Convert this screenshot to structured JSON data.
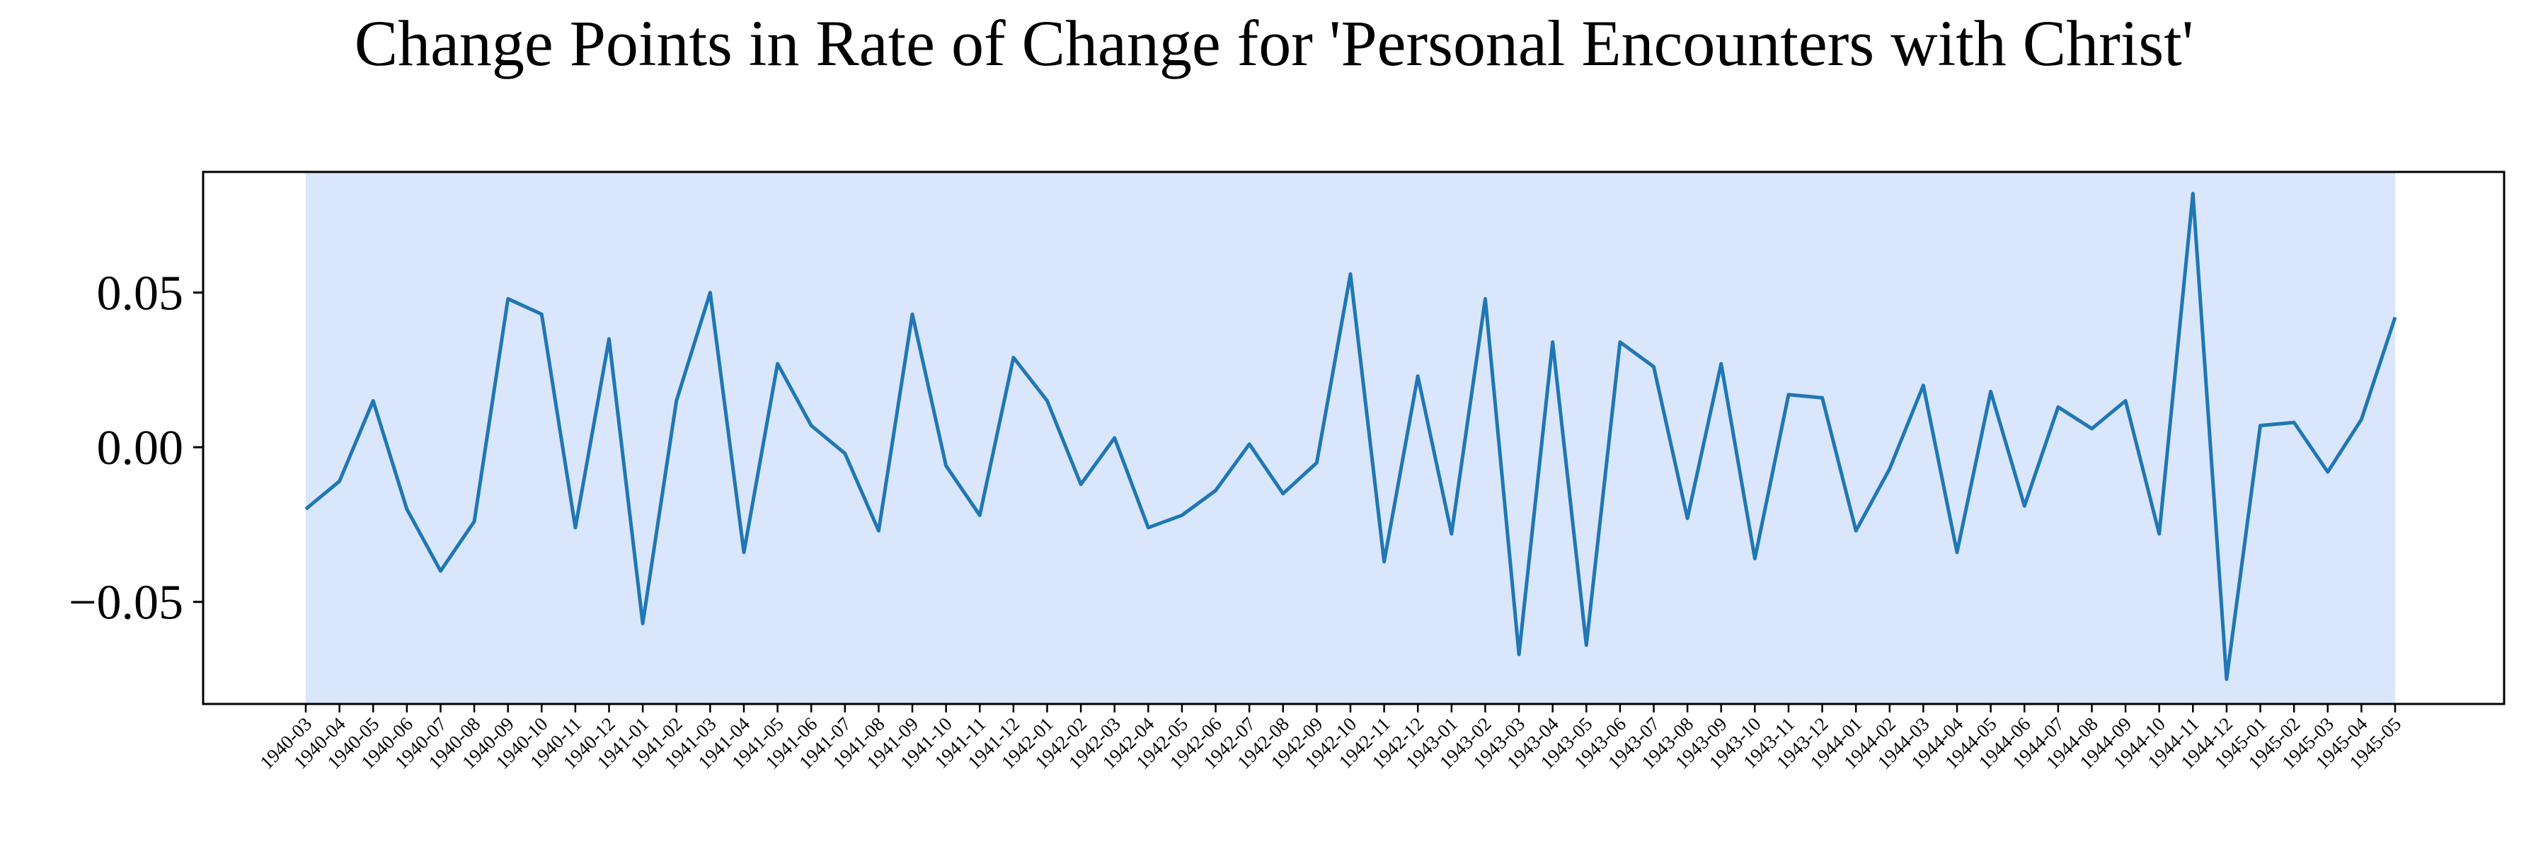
{
  "chart_data": {
    "type": "line",
    "title": "Change Points in Rate of Change for 'Personal Encounters with Christ'",
    "xlabel": "",
    "ylabel": "",
    "ylim": [
      -0.083,
      0.089
    ],
    "yticks": [
      -0.05,
      0.0,
      0.05
    ],
    "ytick_labels": [
      "−0.05",
      "0.00",
      "0.05"
    ],
    "grid": false,
    "line_color": "#1f77b4",
    "highlight_color": "#dae6fb",
    "highlight_span": [
      "1940-03",
      "1945-05"
    ],
    "categories": [
      "1940-03",
      "1940-04",
      "1940-05",
      "1940-06",
      "1940-07",
      "1940-08",
      "1940-09",
      "1940-10",
      "1940-11",
      "1940-12",
      "1941-01",
      "1941-02",
      "1941-03",
      "1941-04",
      "1941-05",
      "1941-06",
      "1941-07",
      "1941-08",
      "1941-09",
      "1941-10",
      "1941-11",
      "1941-12",
      "1942-01",
      "1942-02",
      "1942-03",
      "1942-04",
      "1942-05",
      "1942-06",
      "1942-07",
      "1942-08",
      "1942-09",
      "1942-10",
      "1942-11",
      "1942-12",
      "1943-01",
      "1943-02",
      "1943-03",
      "1943-04",
      "1943-05",
      "1943-06",
      "1943-07",
      "1943-08",
      "1943-09",
      "1943-10",
      "1943-11",
      "1943-12",
      "1944-01",
      "1944-02",
      "1944-03",
      "1944-04",
      "1944-05",
      "1944-06",
      "1944-07",
      "1944-08",
      "1944-09",
      "1944-10",
      "1944-11",
      "1944-12",
      "1945-01",
      "1945-02",
      "1945-03",
      "1945-04",
      "1945-05"
    ],
    "values": [
      -0.02,
      -0.011,
      0.015,
      -0.02,
      -0.04,
      -0.024,
      0.048,
      0.043,
      -0.026,
      0.035,
      -0.057,
      0.015,
      0.05,
      -0.034,
      0.027,
      0.007,
      -0.002,
      -0.027,
      0.043,
      -0.006,
      -0.022,
      0.029,
      0.015,
      -0.012,
      0.003,
      -0.026,
      -0.022,
      -0.014,
      0.001,
      -0.015,
      -0.005,
      0.056,
      -0.037,
      0.023,
      -0.028,
      0.048,
      -0.067,
      0.034,
      -0.064,
      0.034,
      0.026,
      -0.023,
      0.027,
      -0.036,
      0.017,
      0.016,
      -0.027,
      -0.007,
      0.02,
      -0.034,
      0.018,
      -0.019,
      0.013,
      0.006,
      0.015,
      -0.028,
      0.082,
      -0.075,
      0.007,
      0.008,
      -0.008,
      0.009,
      0.042
    ]
  }
}
